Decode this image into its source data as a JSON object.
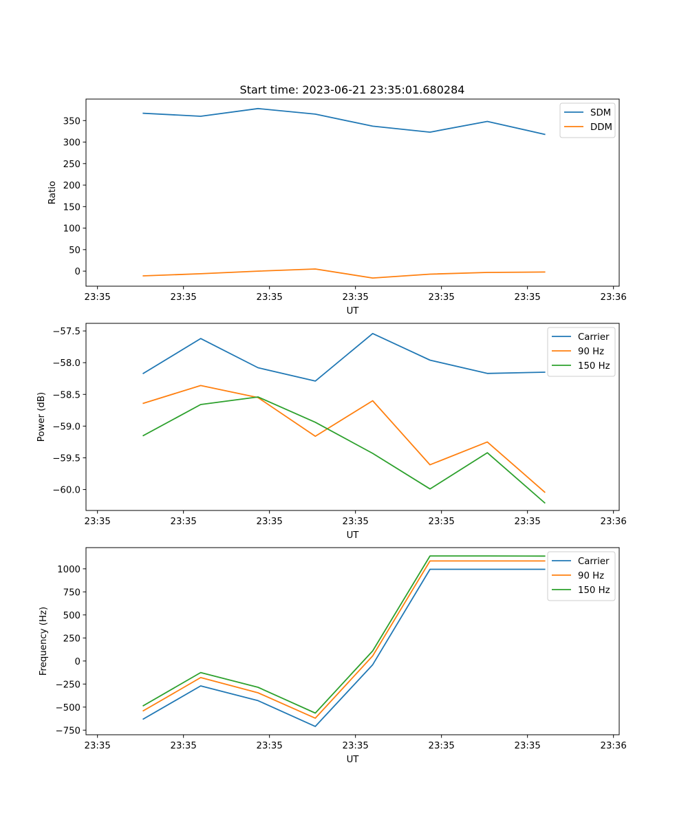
{
  "figure": {
    "title": "Start time: 2023-06-21 23:35:01.680284"
  },
  "chart_data": [
    {
      "type": "line",
      "xlabel": "UT",
      "ylabel": "Ratio",
      "x_tick_labels": [
        "23:35",
        "23:35",
        "23:35",
        "23:35",
        "23:35",
        "23:35",
        "23:36"
      ],
      "y_ticks": [
        0,
        50,
        100,
        150,
        200,
        250,
        300,
        350
      ],
      "y_tick_labels": [
        "0",
        "50",
        "100",
        "150",
        "200",
        "250",
        "300",
        "350"
      ],
      "ylim": [
        -35,
        400
      ],
      "xlim": [
        0,
        9.3
      ],
      "x_tick_positions": [
        0.2,
        1.7,
        3.2,
        4.7,
        6.2,
        7.7,
        9.2
      ],
      "x": [
        1,
        2,
        3,
        4,
        5,
        6,
        7,
        8
      ],
      "legend_position": "top-right",
      "grid": false,
      "series": [
        {
          "name": "SDM",
          "color": "#1f77b4",
          "values": [
            367,
            360,
            378,
            365,
            337,
            323,
            348,
            318
          ]
        },
        {
          "name": "DDM",
          "color": "#ff7f0e",
          "values": [
            -11,
            -6,
            0,
            5,
            -16,
            -7,
            -3,
            -2
          ]
        }
      ]
    },
    {
      "type": "line",
      "xlabel": "UT",
      "ylabel": "Power (dB)",
      "x_tick_labels": [
        "23:35",
        "23:35",
        "23:35",
        "23:35",
        "23:35",
        "23:35",
        "23:36"
      ],
      "y_ticks": [
        -60.0,
        -59.5,
        -59.0,
        -58.5,
        -58.0,
        -57.5
      ],
      "y_tick_labels": [
        "−60.0",
        "−59.5",
        "−59.0",
        "−58.5",
        "−58.0",
        "−57.5"
      ],
      "ylim": [
        -60.33,
        -57.38
      ],
      "xlim": [
        0,
        9.3
      ],
      "x_tick_positions": [
        0.2,
        1.7,
        3.2,
        4.7,
        6.2,
        7.7,
        9.2
      ],
      "x": [
        1,
        2,
        3,
        4,
        5,
        6,
        7,
        8
      ],
      "legend_position": "top-right",
      "grid": false,
      "series": [
        {
          "name": "Carrier",
          "color": "#1f77b4",
          "values": [
            -58.17,
            -57.62,
            -58.08,
            -58.29,
            -57.54,
            -57.96,
            -58.17,
            -58.15
          ]
        },
        {
          "name": "90 Hz",
          "color": "#ff7f0e",
          "values": [
            -58.64,
            -58.36,
            -58.55,
            -59.16,
            -58.6,
            -59.61,
            -59.25,
            -60.04
          ]
        },
        {
          "name": "150 Hz",
          "color": "#2ca02c",
          "values": [
            -59.15,
            -58.66,
            -58.54,
            -58.94,
            -59.43,
            -59.99,
            -59.42,
            -60.21
          ]
        }
      ]
    },
    {
      "type": "line",
      "xlabel": "UT",
      "ylabel": "Frequency (Hz)",
      "x_tick_labels": [
        "23:35",
        "23:35",
        "23:35",
        "23:35",
        "23:35",
        "23:35",
        "23:36"
      ],
      "y_ticks": [
        -750,
        -500,
        -250,
        0,
        250,
        500,
        750,
        1000
      ],
      "y_tick_labels": [
        "−750",
        "−500",
        "−250",
        "0",
        "250",
        "500",
        "750",
        "1000"
      ],
      "ylim": [
        -800,
        1230
      ],
      "xlim": [
        0,
        9.3
      ],
      "x_tick_positions": [
        0.2,
        1.7,
        3.2,
        4.7,
        6.2,
        7.7,
        9.2
      ],
      "x": [
        1,
        2,
        3,
        4,
        5,
        6,
        7,
        8
      ],
      "legend_position": "top-right",
      "grid": false,
      "series": [
        {
          "name": "Carrier",
          "color": "#1f77b4",
          "values": [
            -630,
            -270,
            -430,
            -710,
            -40,
            995,
            995,
            995
          ]
        },
        {
          "name": "90 Hz",
          "color": "#ff7f0e",
          "values": [
            -540,
            -180,
            -345,
            -620,
            55,
            1085,
            1085,
            1085
          ]
        },
        {
          "name": "150 Hz",
          "color": "#2ca02c",
          "values": [
            -485,
            -125,
            -285,
            -565,
            110,
            1140,
            1140,
            1138
          ]
        }
      ]
    }
  ]
}
